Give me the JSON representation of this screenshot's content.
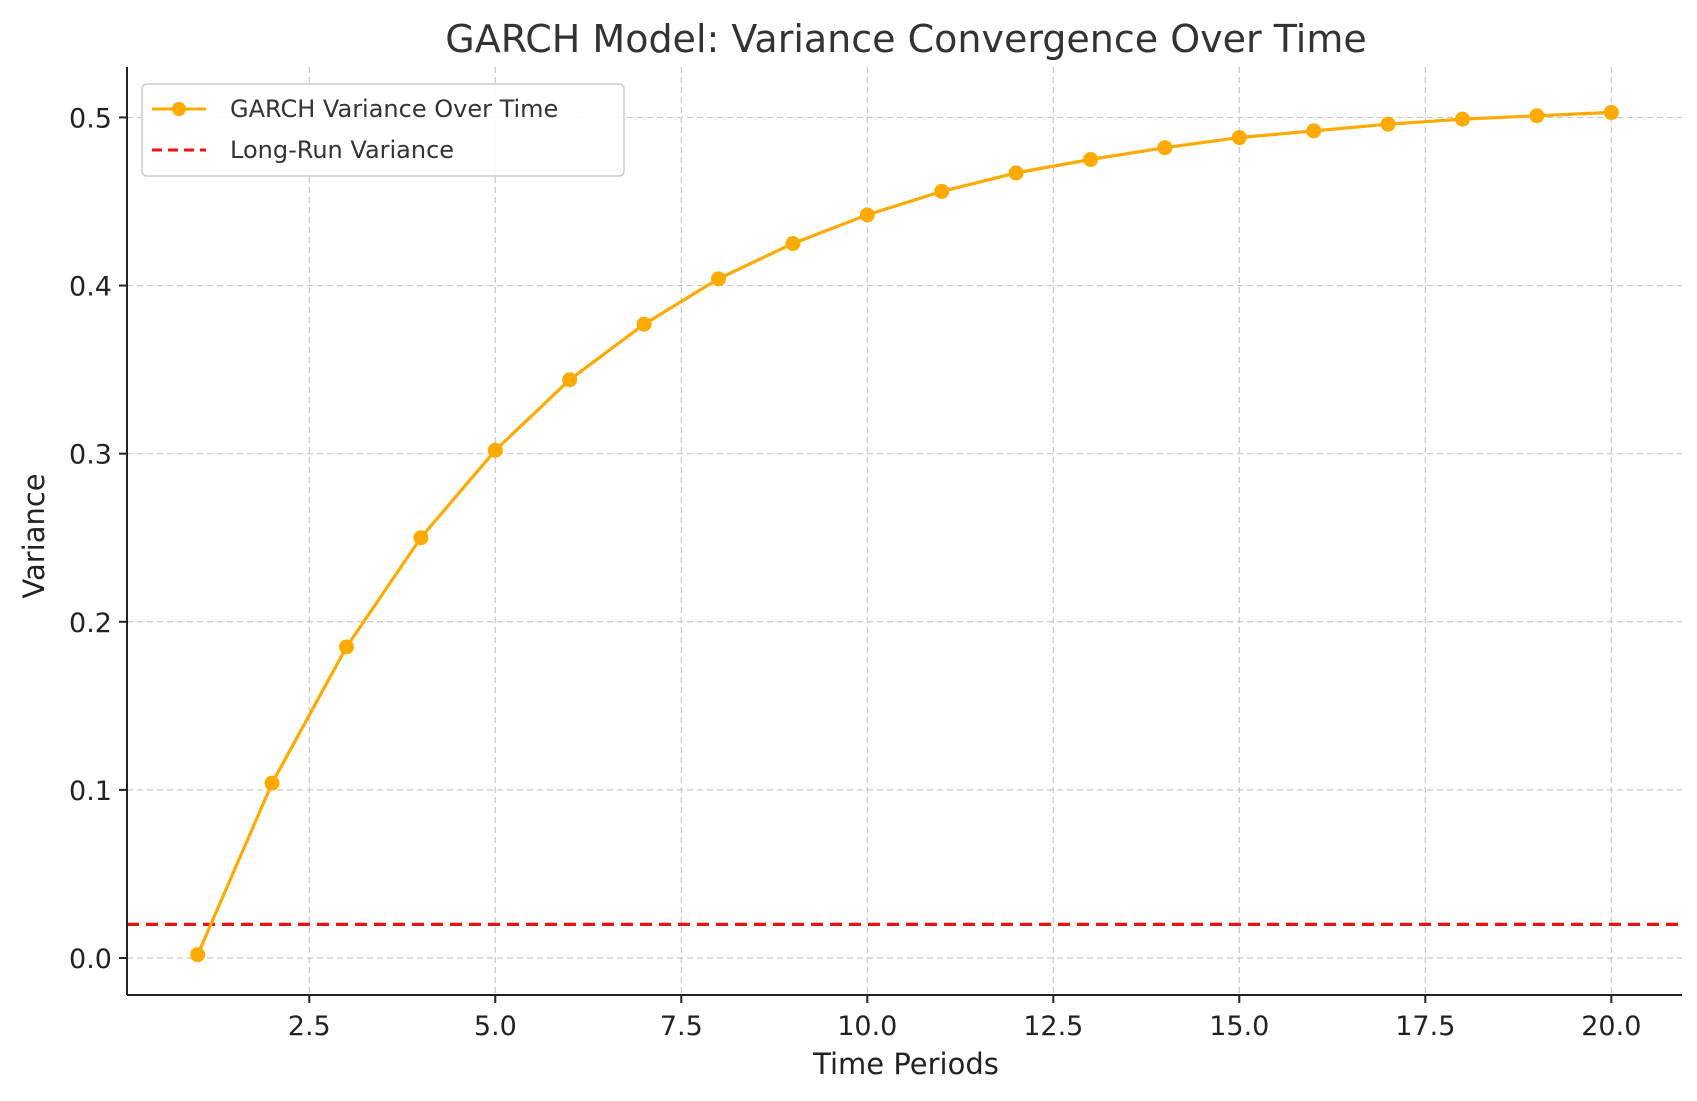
{
  "chart_data": {
    "type": "line",
    "title": "GARCH Model: Variance Convergence Over Time",
    "xlabel": "Time Periods",
    "ylabel": "Variance",
    "xlim": [
      0.05,
      20.95
    ],
    "ylim": [
      -0.022,
      0.53
    ],
    "x_ticks": [
      2.5,
      5.0,
      7.5,
      10.0,
      12.5,
      15.0,
      17.5,
      20.0
    ],
    "x_tick_labels": [
      "2.5",
      "5.0",
      "7.5",
      "10.0",
      "12.5",
      "15.0",
      "17.5",
      "20.0"
    ],
    "y_ticks": [
      0.0,
      0.1,
      0.2,
      0.3,
      0.4,
      0.5
    ],
    "y_tick_labels": [
      "0.0",
      "0.1",
      "0.2",
      "0.3",
      "0.4",
      "0.5"
    ],
    "grid": true,
    "legend_position": "top-left",
    "series": [
      {
        "name": "GARCH Variance Over Time",
        "color": "#FFAA00",
        "style": "solid-with-markers",
        "x": [
          1,
          2,
          3,
          4,
          5,
          6,
          7,
          8,
          9,
          10,
          11,
          12,
          13,
          14,
          15,
          16,
          17,
          18,
          19,
          20
        ],
        "y": [
          0.002,
          0.104,
          0.185,
          0.25,
          0.302,
          0.344,
          0.377,
          0.404,
          0.425,
          0.442,
          0.456,
          0.467,
          0.475,
          0.482,
          0.488,
          0.492,
          0.496,
          0.499,
          0.501,
          0.503
        ]
      },
      {
        "name": "Long-Run Variance",
        "color": "#EE1111",
        "style": "dashed-horizontal",
        "y_value": 0.02
      }
    ]
  }
}
